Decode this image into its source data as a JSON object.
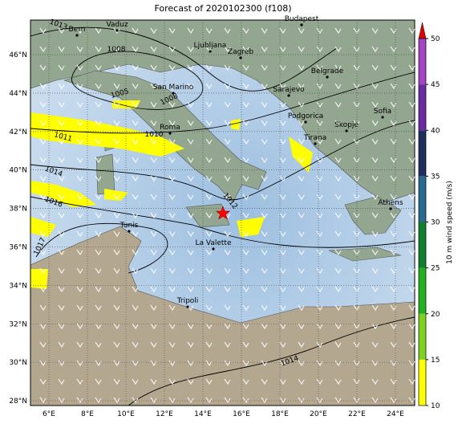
{
  "title": "Forecast of 2020102300 (f108)",
  "map": {
    "lon_ticks": [
      {
        "value": 6,
        "label": "6°E"
      },
      {
        "value": 8,
        "label": "8°E"
      },
      {
        "value": 10,
        "label": "10°E"
      },
      {
        "value": 12,
        "label": "12°E"
      },
      {
        "value": 14,
        "label": "14°E"
      },
      {
        "value": 16,
        "label": "16°E"
      },
      {
        "value": 18,
        "label": "18°E"
      },
      {
        "value": 20,
        "label": "20°E"
      },
      {
        "value": 22,
        "label": "22°E"
      },
      {
        "value": 24,
        "label": "24°E"
      }
    ],
    "lat_ticks": [
      {
        "value": 28,
        "label": "28°N"
      },
      {
        "value": 30,
        "label": "30°N"
      },
      {
        "value": 32,
        "label": "32°N"
      },
      {
        "value": 34,
        "label": "34°N"
      },
      {
        "value": 36,
        "label": "36°N"
      },
      {
        "value": 38,
        "label": "38°N"
      },
      {
        "value": 40,
        "label": "40°N"
      },
      {
        "value": 42,
        "label": "42°N"
      },
      {
        "value": 44,
        "label": "44°N"
      },
      {
        "value": 46,
        "label": "46°N"
      }
    ],
    "cities": [
      "Bern",
      "Vaduz",
      "Budapest",
      "Ljubljana",
      "Zagreb",
      "San Marino",
      "Belgrade",
      "Sarajevo",
      "Roma",
      "Podgorica",
      "Skopje",
      "Sofia",
      "Tirana",
      "Athens",
      "Tunis",
      "La Valette",
      "Tripoli"
    ],
    "isobar_labels": [
      "1013",
      "1008",
      "1005",
      "1008",
      "1011",
      "1010",
      "1014",
      "1016",
      "1017",
      "1012",
      "1014"
    ]
  },
  "colorbar": {
    "label": "10 m wind speed (m/s)",
    "lim": [
      10,
      50
    ],
    "ticks": [
      10,
      15,
      20,
      25,
      30,
      35,
      40,
      45,
      50
    ],
    "colors": [
      "#ffff00",
      "#80d020",
      "#20b020",
      "#108030",
      "#2a6a90",
      "#1e2f5c",
      "#6a2aa0",
      "#a444c4"
    ],
    "extend_color": "#e00000"
  }
}
